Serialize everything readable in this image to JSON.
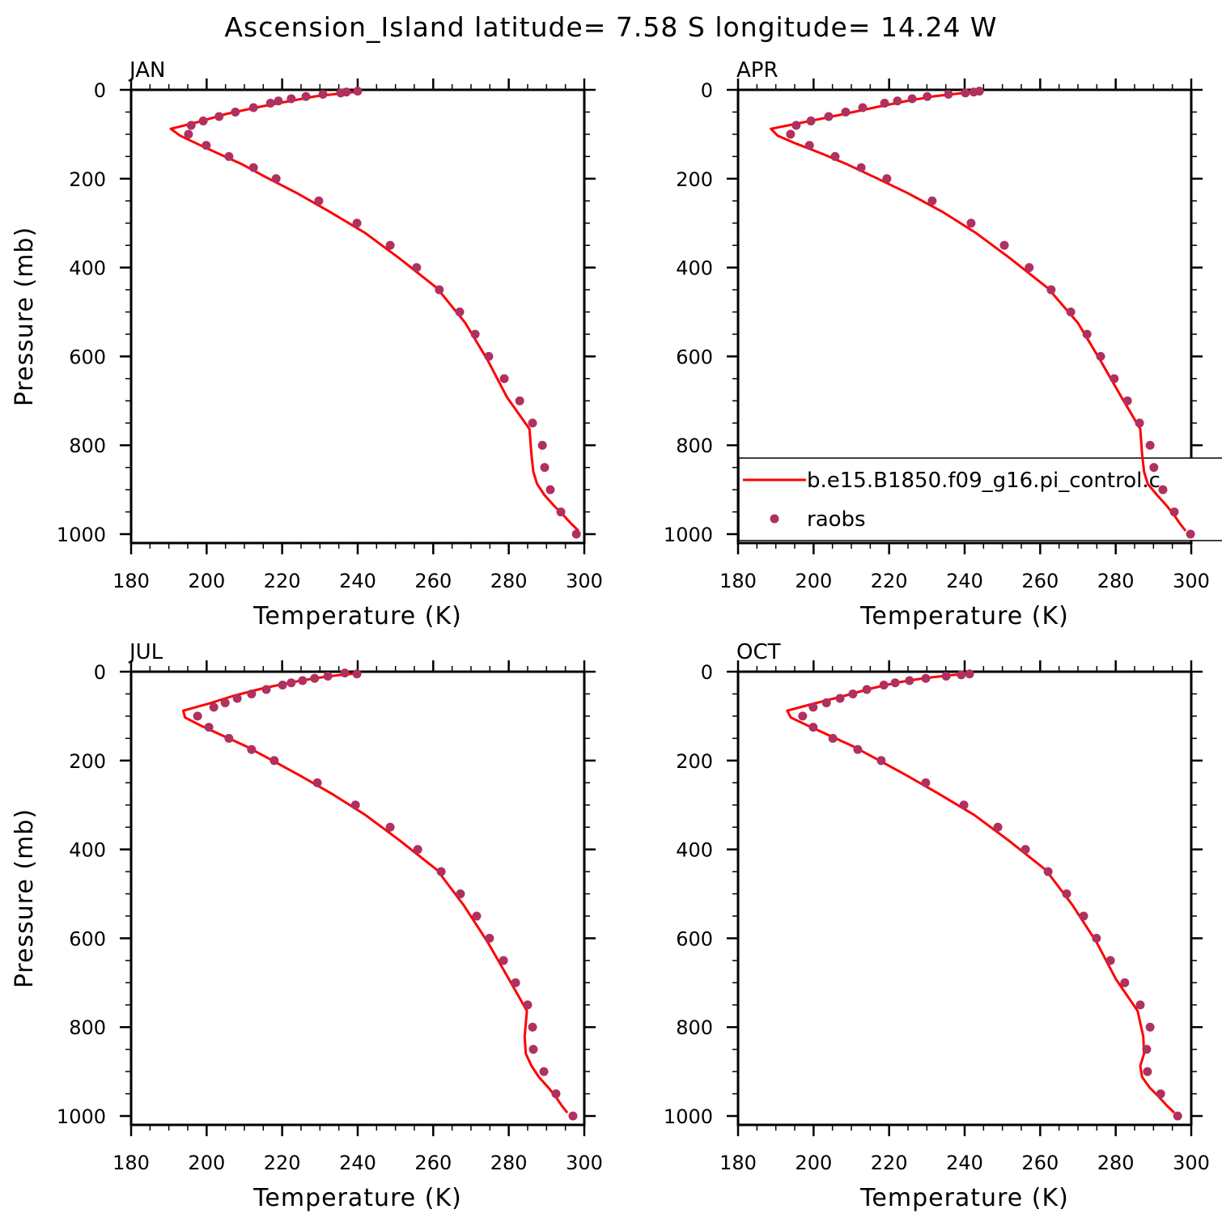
{
  "title": "Ascension_Island   latitude=  7.58  S  longitude=  14.24  W",
  "legend": {
    "model_label": "b.e15.B1850.f09_g16.pi_control.c",
    "obs_label": "raobs"
  },
  "colors": {
    "model": "#FF0000",
    "obs": "#B03060",
    "axis": "#000000"
  },
  "chart_data": {
    "type": "line",
    "panels": [
      "JAN",
      "APR",
      "JUL",
      "OCT"
    ],
    "xlabel": "Temperature (K)",
    "ylabel": "Pressure (mb)",
    "xlim": [
      180,
      300
    ],
    "ylim": [
      1020,
      0
    ],
    "xticks": [
      "180",
      "200",
      "220",
      "240",
      "260",
      "280",
      "300"
    ],
    "yticks": [
      "0",
      "200",
      "400",
      "600",
      "800",
      "1000"
    ],
    "model_pressure": [
      3.6,
      7.6,
      14.4,
      24.6,
      38.3,
      54.6,
      72,
      87.8,
      103.3,
      121.5,
      142.9,
      168.2,
      197.9,
      232.8,
      273.9,
      322.2,
      379.1,
      446,
      524.7,
      609.8,
      691.4,
      763.4,
      820.9,
      859.5,
      887,
      912.6,
      936.2,
      957.5,
      976.3,
      992.6
    ],
    "obs_pressure": [
      3,
      5,
      7,
      10,
      15,
      20,
      25,
      30,
      40,
      50,
      60,
      70,
      80,
      100,
      125,
      150,
      175,
      200,
      250,
      300,
      350,
      400,
      450,
      500,
      550,
      600,
      650,
      700,
      750,
      800,
      850,
      900,
      950,
      1000
    ],
    "series": [
      {
        "month": "JAN",
        "model": [
          241,
          236,
          229,
          222.5,
          214,
          205,
          198,
          190.5,
          193,
          197.5,
          203,
          209.5,
          216,
          224,
          232.5,
          242,
          251,
          261,
          268.5,
          274.5,
          279.5,
          285.5,
          286,
          286.5,
          287.5,
          289.5,
          292,
          294.5,
          296.5,
          298.5
        ],
        "raobs": [
          240.0,
          237.0,
          235.5,
          230.8,
          226.3,
          222.4,
          219.0,
          216.9,
          212.4,
          207.6,
          203.3,
          199.1,
          195.9,
          195.2,
          199.9,
          205.9,
          212.4,
          218.4,
          229.7,
          239.8,
          248.6,
          255.6,
          261.6,
          267.0,
          271.1,
          274.7,
          278.8,
          282.9,
          286.3,
          288.9,
          289.5,
          291.0,
          293.8,
          297.9
        ]
      },
      {
        "month": "APR",
        "model": [
          244,
          239,
          232,
          225,
          217,
          208,
          198,
          188.7,
          190.5,
          195.5,
          202,
          209,
          216.5,
          225,
          234,
          243,
          252,
          262,
          270,
          276,
          281.5,
          286.5,
          287,
          287.5,
          288.5,
          291,
          293.5,
          295.5,
          297,
          298.5
        ],
        "raobs": [
          243.9,
          242.4,
          240.2,
          235.7,
          230.1,
          226.1,
          222.2,
          218.8,
          213.0,
          208.5,
          204.0,
          199.3,
          195.4,
          193.9,
          198.9,
          205.7,
          212.6,
          219.4,
          231.4,
          241.7,
          250.5,
          257.1,
          262.9,
          268.1,
          272.4,
          276.0,
          279.6,
          283.1,
          286.3,
          289.1,
          290.1,
          292.5,
          295.5,
          299.8
        ]
      },
      {
        "month": "JUL",
        "model": [
          240,
          235,
          229,
          222,
          214.5,
          207,
          200.5,
          193.8,
          194.3,
          198.5,
          204,
          210.5,
          217,
          224.5,
          233,
          242,
          251,
          261,
          268,
          274.5,
          280,
          284.8,
          284.2,
          284.5,
          286,
          288,
          290.5,
          292.5,
          294,
          295.5
        ],
        "raobs": [
          236.6,
          239.8,
          null,
          232.1,
          228.6,
          225.4,
          222.4,
          220.1,
          215.8,
          211.9,
          208.1,
          204.9,
          201.9,
          197.6,
          200.6,
          205.9,
          211.9,
          217.9,
          229.3,
          239.4,
          248.6,
          255.9,
          262.1,
          267.2,
          271.5,
          274.9,
          278.6,
          281.8,
          285.0,
          286.3,
          286.5,
          289.3,
          292.5,
          297.0
        ]
      },
      {
        "month": "OCT",
        "model": [
          242,
          236.5,
          229.5,
          222,
          215,
          208,
          200,
          193,
          194,
          198.5,
          204,
          210.5,
          217,
          224.5,
          233,
          242.5,
          251.5,
          261.5,
          268.5,
          275,
          280,
          285.8,
          287.3,
          287.5,
          286.5,
          287,
          289,
          291.5,
          293.5,
          295.5
        ],
        "raobs": [
          null,
          241.3,
          239.1,
          235.1,
          229.7,
          225.4,
          221.6,
          218.6,
          214.1,
          210.4,
          207.0,
          203.4,
          199.9,
          197.1,
          199.9,
          205.1,
          211.7,
          217.9,
          229.7,
          239.8,
          248.8,
          256.1,
          262.1,
          267.0,
          271.5,
          274.9,
          278.6,
          282.4,
          286.5,
          289.1,
          288.2,
          288.4,
          291.9,
          296.4
        ]
      }
    ]
  }
}
